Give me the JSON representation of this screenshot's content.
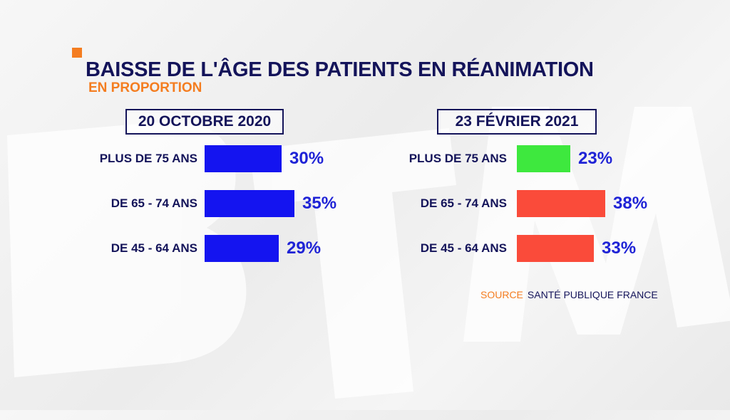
{
  "header": {
    "title": "BAISSE DE L'ÂGE DES PATIENTS EN RÉANIMATION",
    "subtitle": "EN PROPORTION"
  },
  "source": {
    "label": "SOURCE",
    "name": "SANTÉ PUBLIQUE FRANCE"
  },
  "colors": {
    "accent": "#f47d20",
    "navy": "#14145a",
    "value_text": "#1f23d6",
    "bar_blue": "#1414f0",
    "bar_green": "#3ee83e",
    "bar_red": "#fa4b3a"
  },
  "chart_data": [
    {
      "type": "bar",
      "orientation": "horizontal",
      "title": "20 OCTOBRE 2020",
      "categories": [
        "PLUS DE 75 ANS",
        "DE 65 - 74 ANS",
        "DE 45 - 64 ANS"
      ],
      "values": [
        30,
        35,
        29
      ],
      "value_labels": [
        "30%",
        "35%",
        "29%"
      ],
      "bar_colors": [
        "#1414f0",
        "#1414f0",
        "#1414f0"
      ],
      "unit": "%"
    },
    {
      "type": "bar",
      "orientation": "horizontal",
      "title": "23 FÉVRIER 2021",
      "categories": [
        "PLUS DE 75 ANS",
        "DE 65 - 74 ANS",
        "DE 45 - 64 ANS"
      ],
      "values": [
        23,
        38,
        33
      ],
      "value_labels": [
        "23%",
        "38%",
        "33%"
      ],
      "bar_colors": [
        "#3ee83e",
        "#fa4b3a",
        "#fa4b3a"
      ],
      "unit": "%"
    }
  ]
}
